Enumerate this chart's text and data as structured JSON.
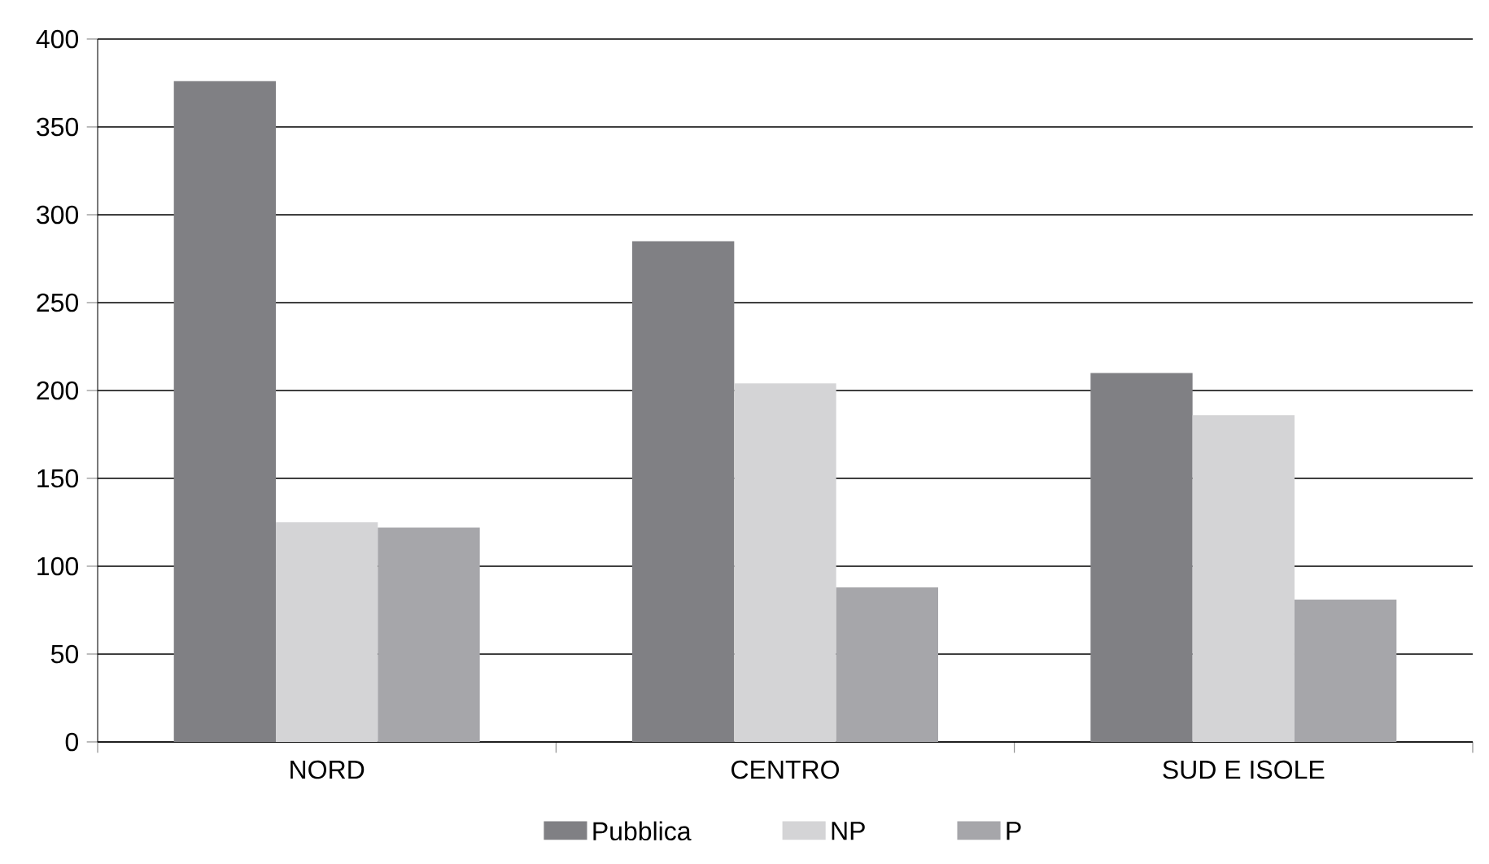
{
  "chart_data": {
    "type": "bar",
    "categories": [
      "NORD",
      "CENTRO",
      "SUD E ISOLE"
    ],
    "series": [
      {
        "name": "Pubblica",
        "color": "#808084",
        "values": [
          376,
          285,
          210
        ]
      },
      {
        "name": "NP",
        "color": "#d4d4d6",
        "values": [
          125,
          204,
          186
        ]
      },
      {
        "name": "P",
        "color": "#a6a6aa",
        "values": [
          122,
          88,
          81
        ]
      }
    ],
    "ylim": [
      0,
      400
    ],
    "yticks": [
      0,
      50,
      100,
      150,
      200,
      250,
      300,
      350,
      400
    ],
    "grid": "y",
    "legend": "bottom"
  }
}
